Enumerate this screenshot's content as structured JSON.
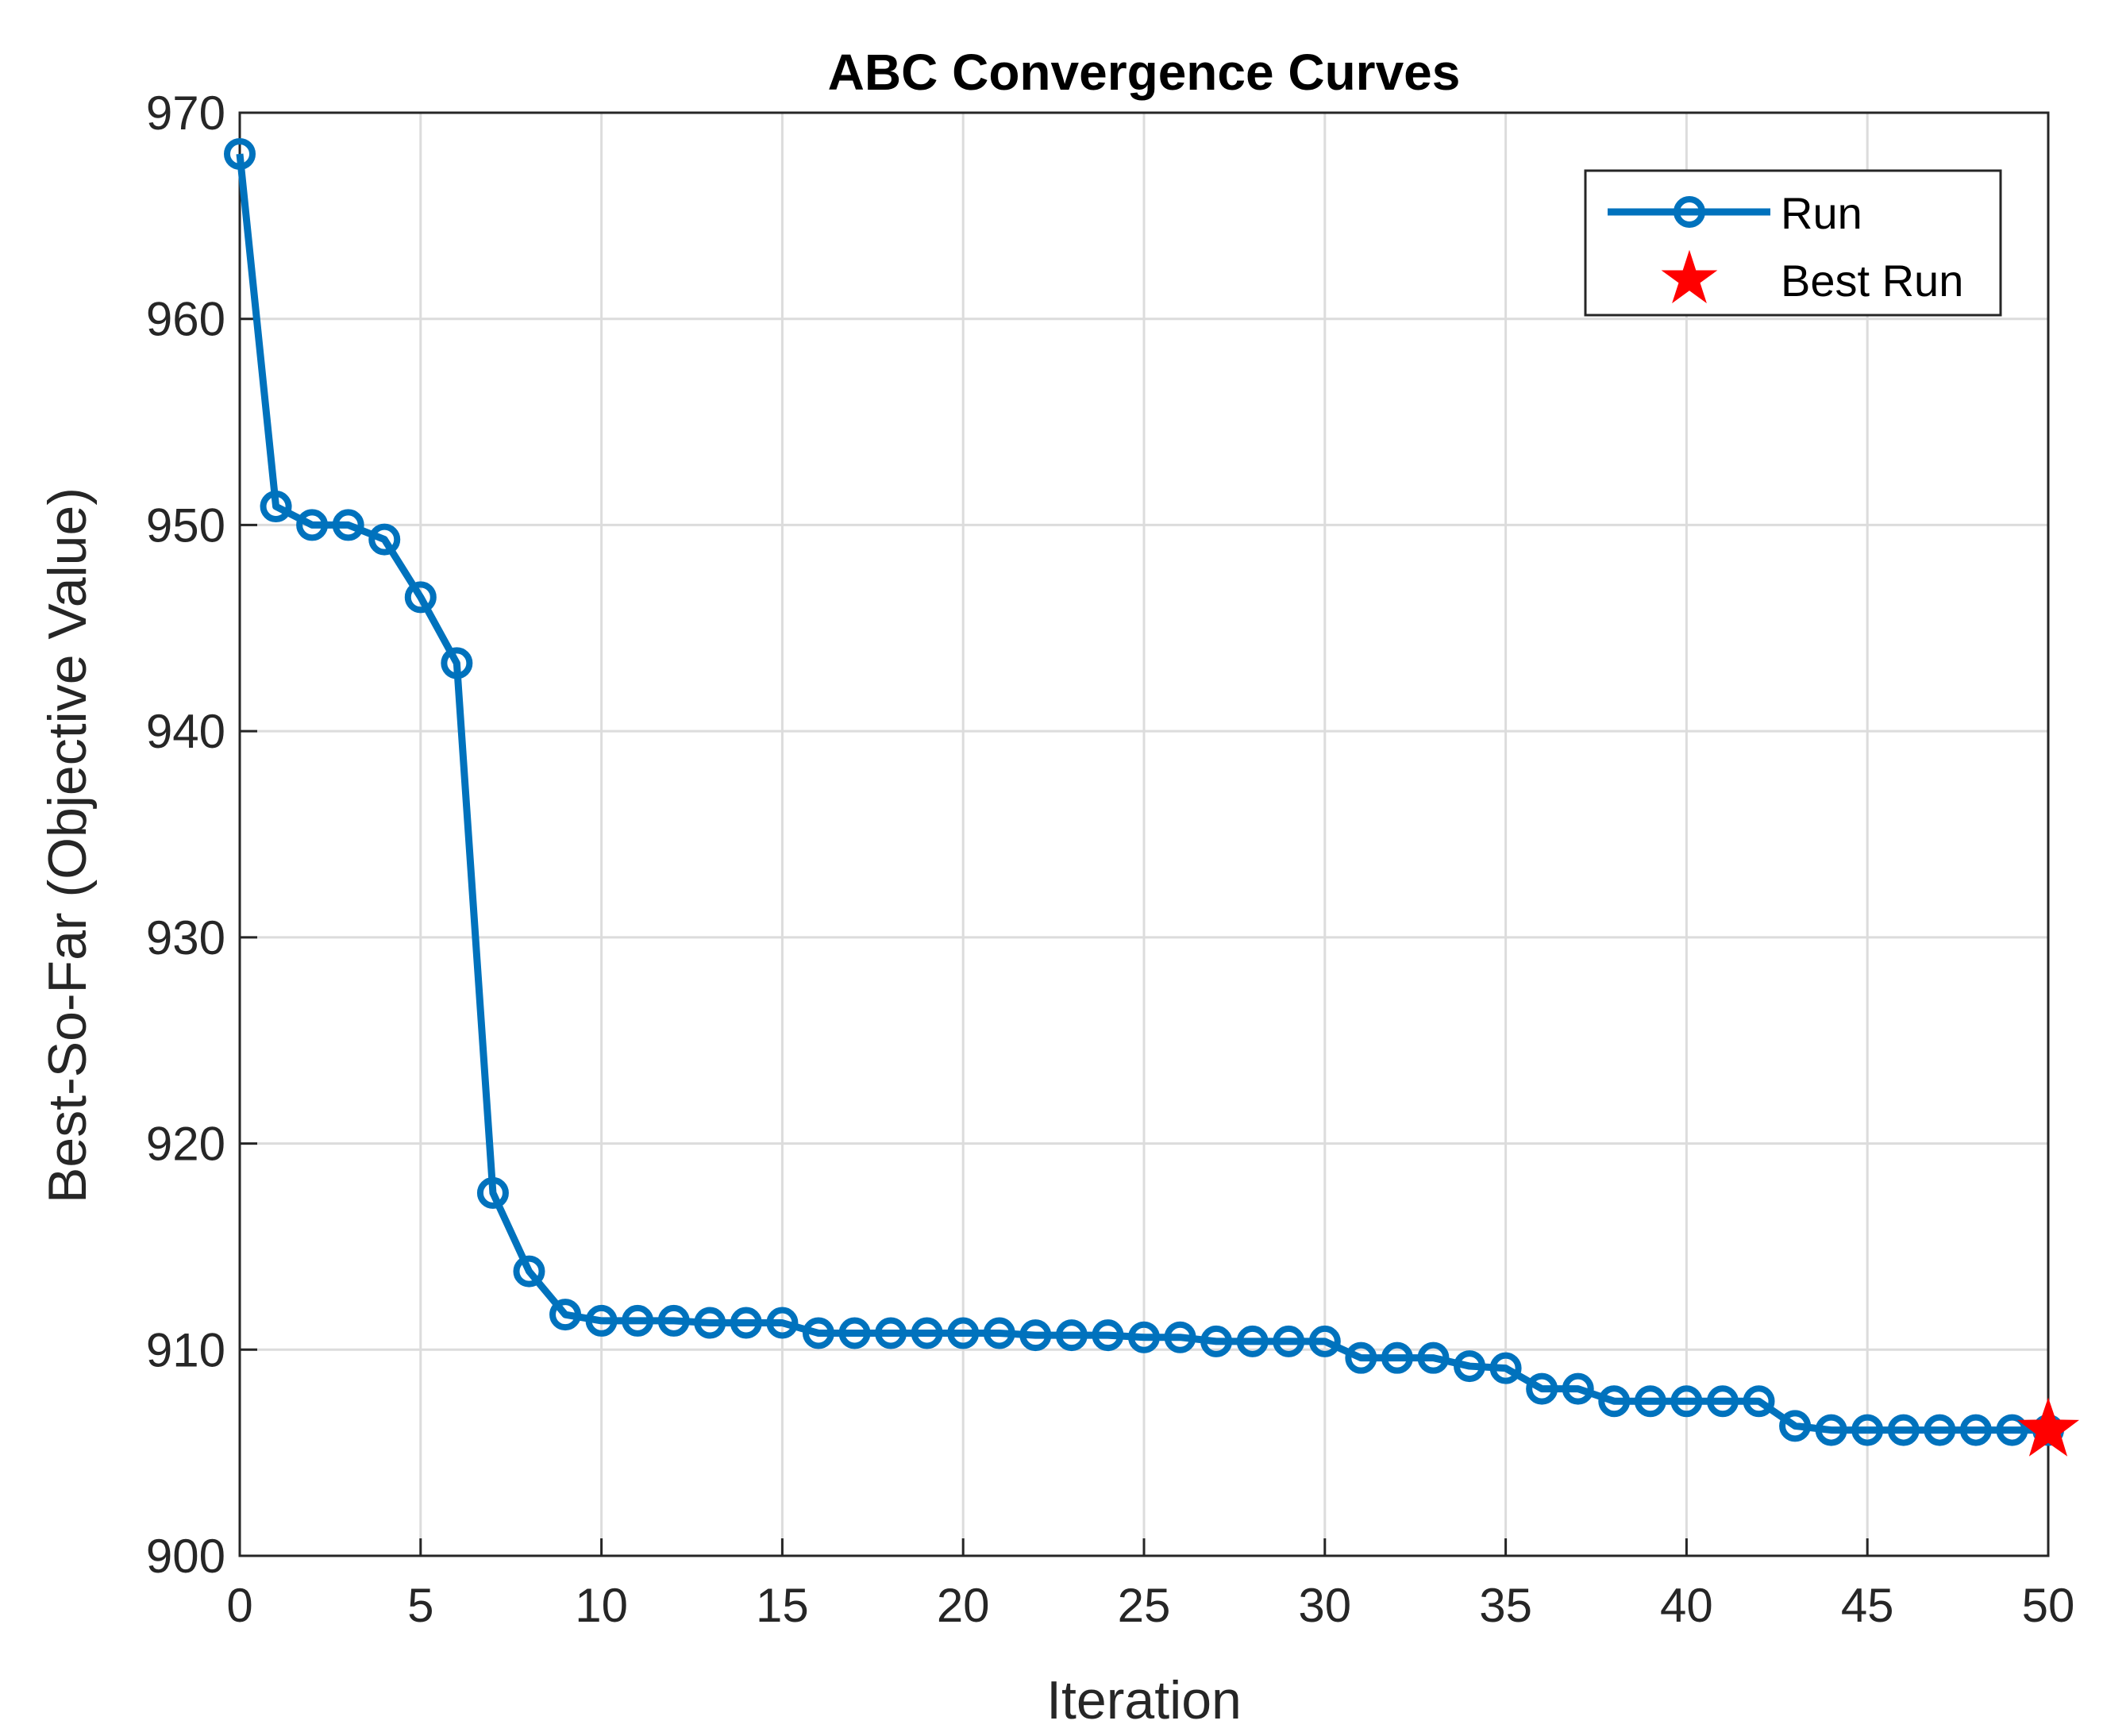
{
  "chart_data": {
    "type": "line",
    "title": "ABC Convergence Curves",
    "xlabel": "Iteration",
    "ylabel": "Best-So-Far (Objective Value)",
    "xlim": [
      0,
      50
    ],
    "ylim": [
      900,
      970
    ],
    "x_ticks": [
      0,
      5,
      10,
      15,
      20,
      25,
      30,
      35,
      40,
      45,
      50
    ],
    "y_ticks": [
      900,
      910,
      920,
      930,
      940,
      950,
      960,
      970
    ],
    "grid": true,
    "legend_position": "top-right",
    "series": [
      {
        "name": "Run",
        "color": "#0072BD",
        "marker": "circle",
        "x": [
          0,
          1,
          2,
          3,
          4,
          5,
          6,
          7,
          8,
          9,
          10,
          11,
          12,
          13,
          14,
          15,
          16,
          17,
          18,
          19,
          20,
          21,
          22,
          23,
          24,
          25,
          26,
          27,
          28,
          29,
          30,
          31,
          32,
          33,
          34,
          35,
          36,
          37,
          38,
          39,
          40,
          41,
          42,
          43,
          44,
          45,
          46,
          47,
          48,
          49,
          50
        ],
        "values": [
          968.0,
          950.9,
          950.0,
          950.0,
          949.3,
          946.5,
          943.3,
          917.6,
          913.8,
          911.7,
          911.4,
          911.4,
          911.4,
          911.3,
          911.3,
          911.3,
          910.8,
          910.8,
          910.8,
          910.8,
          910.8,
          910.8,
          910.7,
          910.7,
          910.7,
          910.6,
          910.6,
          910.4,
          910.4,
          910.4,
          910.4,
          909.6,
          909.6,
          909.6,
          909.2,
          909.1,
          908.1,
          908.1,
          907.5,
          907.5,
          907.5,
          907.5,
          907.5,
          906.3,
          906.1,
          906.1,
          906.1,
          906.1,
          906.1,
          906.1,
          906.1
        ]
      },
      {
        "name": "Best Run",
        "color": "#FF0000",
        "marker": "star",
        "x": [
          50
        ],
        "values": [
          906.1
        ]
      }
    ]
  }
}
